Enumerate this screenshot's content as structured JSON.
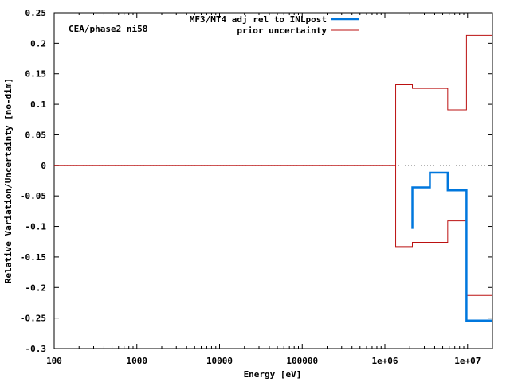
{
  "chart_data": {
    "type": "line",
    "annotation": "CEA/phase2 ni58",
    "xlabel": "Energy [eV]",
    "ylabel": "Relative Variation/Uncertainty [no-dim]",
    "x_scale": "log",
    "xlim": [
      100,
      20000000
    ],
    "ylim": [
      -0.3,
      0.25
    ],
    "x_ticks": [
      {
        "value": 100,
        "label": "100"
      },
      {
        "value": 1000,
        "label": "1000"
      },
      {
        "value": 10000,
        "label": "10000"
      },
      {
        "value": 100000,
        "label": "100000"
      },
      {
        "value": 1000000,
        "label": "1e+06"
      },
      {
        "value": 10000000,
        "label": "1e+07"
      }
    ],
    "y_ticks": [
      {
        "value": 0.25,
        "label": "0.25"
      },
      {
        "value": 0.2,
        "label": "0.2"
      },
      {
        "value": 0.15,
        "label": "0.15"
      },
      {
        "value": 0.1,
        "label": "0.1"
      },
      {
        "value": 0.05,
        "label": "0.05"
      },
      {
        "value": 0,
        "label": "0"
      },
      {
        "value": -0.05,
        "label": "-0.05"
      },
      {
        "value": -0.1,
        "label": "-0.1"
      },
      {
        "value": -0.15,
        "label": "-0.15"
      },
      {
        "value": -0.2,
        "label": "-0.2"
      },
      {
        "value": -0.25,
        "label": "-0.25"
      },
      {
        "value": -0.3,
        "label": "-0.3"
      }
    ],
    "legend_position": "top-center",
    "zero_line": true,
    "series": [
      {
        "name": "MF3/MT4 adj rel to INLpost",
        "color": "#0077dd",
        "style": "step",
        "points": [
          [
            2150000,
            -0.104
          ],
          [
            2150000,
            -0.036
          ],
          [
            3500000,
            -0.036
          ],
          [
            3500000,
            -0.012
          ],
          [
            5750000,
            -0.012
          ],
          [
            5750000,
            -0.041
          ],
          [
            9700000,
            -0.041
          ],
          [
            9700000,
            -0.254
          ],
          [
            20000000,
            -0.254
          ]
        ]
      },
      {
        "name": "prior uncertainty",
        "color": "#bb1111",
        "style": "step",
        "upper": [
          [
            100,
            0
          ],
          [
            1350000,
            0
          ],
          [
            1350000,
            0.132
          ],
          [
            2150000,
            0.132
          ],
          [
            2150000,
            0.126
          ],
          [
            5750000,
            0.126
          ],
          [
            5750000,
            0.091
          ],
          [
            9700000,
            0.091
          ],
          [
            9700000,
            0.213
          ],
          [
            20000000,
            0.213
          ]
        ],
        "lower": [
          [
            100,
            0
          ],
          [
            1350000,
            0
          ],
          [
            1350000,
            -0.133
          ],
          [
            2150000,
            -0.133
          ],
          [
            2150000,
            -0.126
          ],
          [
            5750000,
            -0.126
          ],
          [
            5750000,
            -0.091
          ],
          [
            9700000,
            -0.091
          ],
          [
            9700000,
            -0.213
          ],
          [
            20000000,
            -0.213
          ]
        ]
      }
    ]
  }
}
